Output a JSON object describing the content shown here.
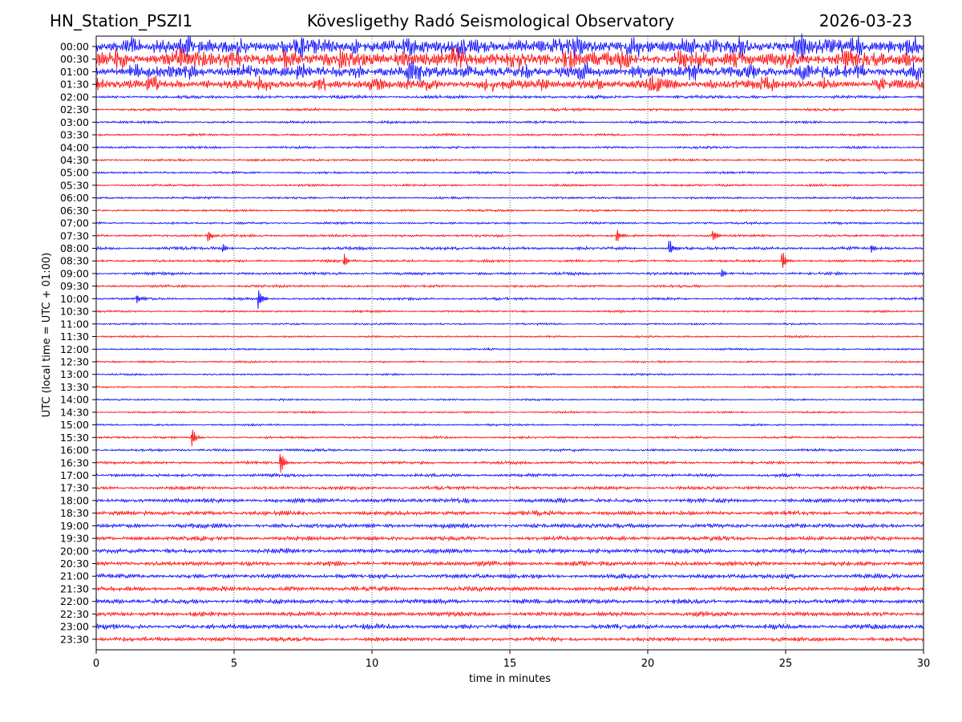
{
  "header": {
    "station": "HN_Station_PSZI1",
    "observatory": "Kövesligethy Radó Seismological Observatory",
    "date": "2026-03-23"
  },
  "chart_data": {
    "type": "line",
    "title": "Kövesligethy Radó Seismological Observatory",
    "xlabel": "time in minutes",
    "ylabel": "UTC (local time = UTC + 01:00)",
    "xlim": [
      0,
      30
    ],
    "xticks": [
      0,
      5,
      10,
      15,
      20,
      25,
      30
    ],
    "grid": "vertical dotted lines at 5-minute intervals",
    "trace_colors": [
      "#0000ff",
      "#ff0000"
    ],
    "rows": [
      "00:00",
      "00:30",
      "01:00",
      "01:30",
      "02:00",
      "02:30",
      "03:00",
      "03:30",
      "04:00",
      "04:30",
      "05:00",
      "05:30",
      "06:00",
      "06:30",
      "07:00",
      "07:30",
      "08:00",
      "08:30",
      "09:00",
      "09:30",
      "10:00",
      "10:30",
      "11:00",
      "11:30",
      "12:00",
      "12:30",
      "13:00",
      "13:30",
      "14:00",
      "14:30",
      "15:00",
      "15:30",
      "16:00",
      "16:30",
      "17:00",
      "17:30",
      "18:00",
      "18:30",
      "19:00",
      "19:30",
      "20:00",
      "20:30",
      "21:00",
      "21:30",
      "22:00",
      "22:30",
      "23:00",
      "23:30"
    ],
    "noise_level": [
      1.0,
      1.0,
      0.8,
      0.65,
      0.22,
      0.18,
      0.17,
      0.16,
      0.16,
      0.16,
      0.16,
      0.16,
      0.16,
      0.16,
      0.16,
      0.18,
      0.22,
      0.18,
      0.2,
      0.17,
      0.18,
      0.14,
      0.13,
      0.13,
      0.13,
      0.13,
      0.13,
      0.13,
      0.13,
      0.13,
      0.14,
      0.16,
      0.18,
      0.2,
      0.22,
      0.24,
      0.3,
      0.3,
      0.32,
      0.3,
      0.34,
      0.32,
      0.32,
      0.32,
      0.34,
      0.32,
      0.34,
      0.3
    ],
    "events": [
      {
        "row": "07:30",
        "minute": 4.1,
        "amplitude": 0.5
      },
      {
        "row": "07:30",
        "minute": 18.9,
        "amplitude": 0.6
      },
      {
        "row": "07:30",
        "minute": 22.4,
        "amplitude": 0.5
      },
      {
        "row": "08:00",
        "minute": 4.6,
        "amplitude": 0.35
      },
      {
        "row": "08:00",
        "minute": 20.8,
        "amplitude": 0.7
      },
      {
        "row": "08:00",
        "minute": 28.1,
        "amplitude": 0.4
      },
      {
        "row": "08:30",
        "minute": 9.0,
        "amplitude": 0.6
      },
      {
        "row": "08:30",
        "minute": 24.9,
        "amplitude": 0.8
      },
      {
        "row": "09:00",
        "minute": 22.7,
        "amplitude": 0.35
      },
      {
        "row": "10:00",
        "minute": 1.5,
        "amplitude": 0.35
      },
      {
        "row": "10:00",
        "minute": 5.9,
        "amplitude": 0.9
      },
      {
        "row": "15:30",
        "minute": 3.5,
        "amplitude": 0.8
      },
      {
        "row": "16:30",
        "minute": 6.7,
        "amplitude": 1.0
      }
    ]
  }
}
